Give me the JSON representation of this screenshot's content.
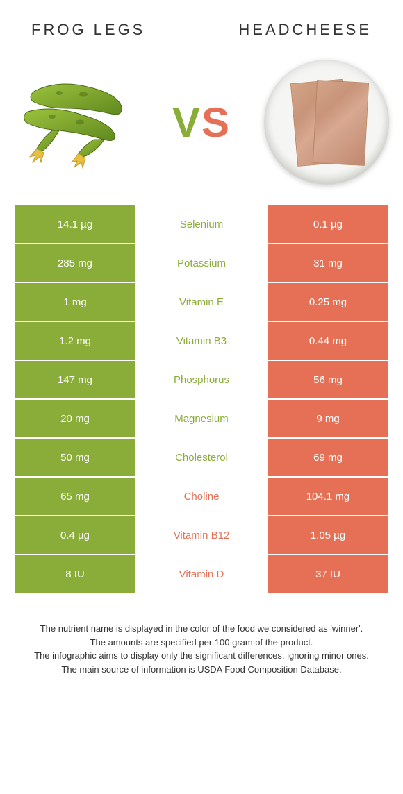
{
  "titles": {
    "left": "Frog legs",
    "right": "Headcheese"
  },
  "vs": {
    "v": "V",
    "s": "S"
  },
  "colors": {
    "left": "#8aad3a",
    "right": "#e57055",
    "left_winner_text": "#8aad3a",
    "right_winner_text": "#e57055"
  },
  "rows": [
    {
      "nutrient": "Selenium",
      "left": "14.1 µg",
      "right": "0.1 µg",
      "winner": "left"
    },
    {
      "nutrient": "Potassium",
      "left": "285 mg",
      "right": "31 mg",
      "winner": "left"
    },
    {
      "nutrient": "Vitamin E",
      "left": "1 mg",
      "right": "0.25 mg",
      "winner": "left"
    },
    {
      "nutrient": "Vitamin B3",
      "left": "1.2 mg",
      "right": "0.44 mg",
      "winner": "left"
    },
    {
      "nutrient": "Phosphorus",
      "left": "147 mg",
      "right": "56 mg",
      "winner": "left"
    },
    {
      "nutrient": "Magnesium",
      "left": "20 mg",
      "right": "9 mg",
      "winner": "left"
    },
    {
      "nutrient": "Cholesterol",
      "left": "50 mg",
      "right": "69 mg",
      "winner": "left"
    },
    {
      "nutrient": "Choline",
      "left": "65 mg",
      "right": "104.1 mg",
      "winner": "right"
    },
    {
      "nutrient": "Vitamin B12",
      "left": "0.4 µg",
      "right": "1.05 µg",
      "winner": "right"
    },
    {
      "nutrient": "Vitamin D",
      "left": "8 IU",
      "right": "37 IU",
      "winner": "right"
    }
  ],
  "footnotes": [
    "The nutrient name is displayed in the color of the food we considered as 'winner'.",
    "The amounts are specified per 100 gram of the product.",
    "The infographic aims to display only the significant differences, ignoring minor ones.",
    "The main source of information is USDA Food Composition Database."
  ]
}
